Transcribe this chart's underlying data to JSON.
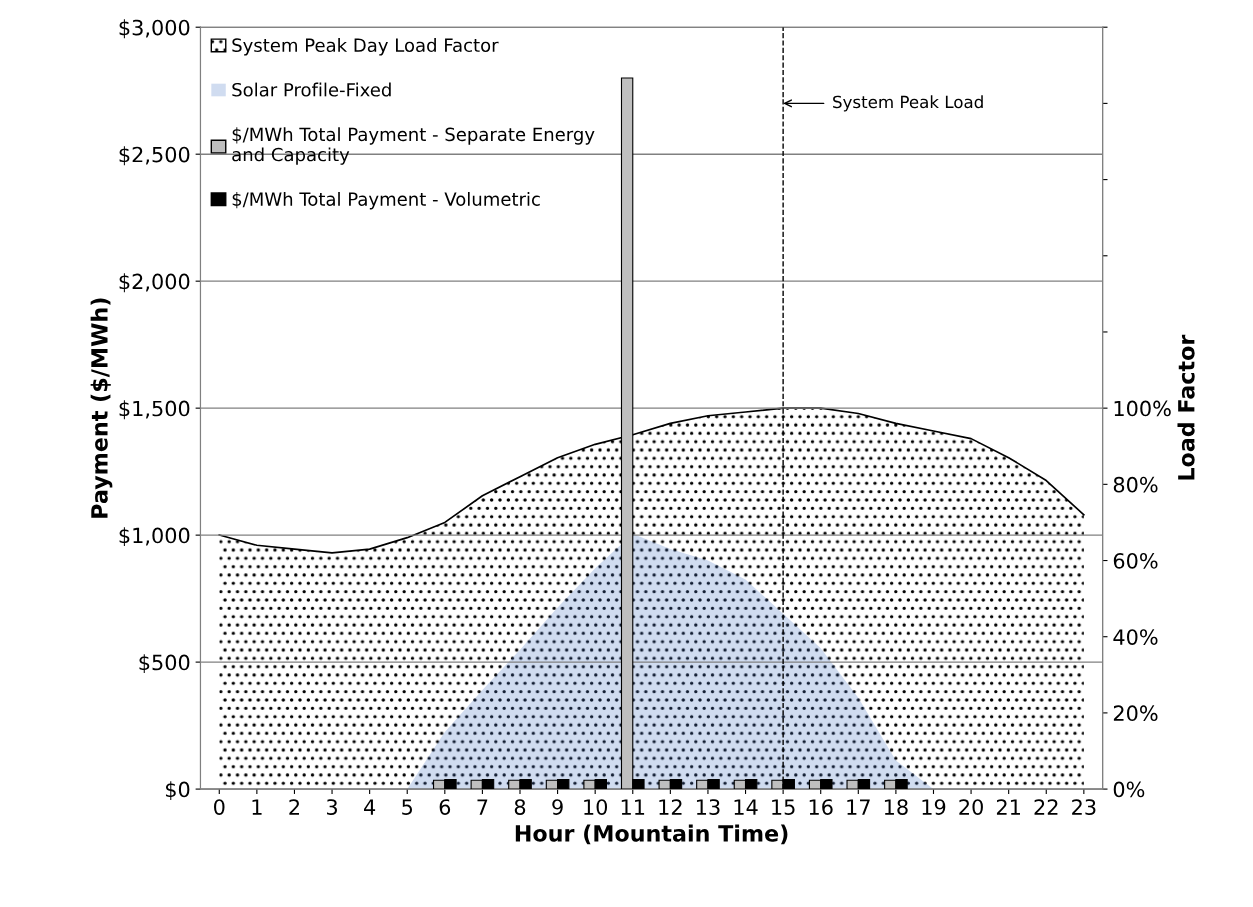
{
  "chart_data": {
    "type": "bar",
    "xlabel": "Hour (Mountain Time)",
    "ylabel": "Payment ($/MWh)",
    "y2label": "Load Factor",
    "categories": [
      "0",
      "1",
      "2",
      "3",
      "4",
      "5",
      "6",
      "7",
      "8",
      "9",
      "10",
      "11",
      "12",
      "13",
      "14",
      "15",
      "16",
      "17",
      "18",
      "19",
      "20",
      "21",
      "22",
      "23"
    ],
    "series": [
      {
        "name": "System Peak Day Load Factor",
        "type": "area",
        "axis": "y2",
        "color": "#000000",
        "values": [
          66.7,
          64,
          63,
          62,
          63,
          66,
          70,
          77,
          82,
          87,
          90.5,
          93,
          96,
          98,
          99,
          100,
          100,
          98.6,
          96,
          94,
          92,
          87,
          81,
          72
        ]
      },
      {
        "name": "Solar Profile-Fixed",
        "type": "area",
        "axis": "y2",
        "color": "#4472c4",
        "values": [
          0,
          0,
          0,
          0,
          0,
          0,
          15,
          26,
          36.6,
          47.7,
          58,
          67,
          63,
          60,
          55,
          46,
          37,
          24,
          7.5,
          0,
          0,
          0,
          0,
          0
        ]
      },
      {
        "name": "$/MWh Total Payment - Separate Energy and Capacity",
        "color": "#bfbfbf",
        "values": [
          null,
          null,
          null,
          null,
          null,
          null,
          35,
          35,
          35,
          35,
          35,
          2800,
          35,
          35,
          35,
          35,
          35,
          35,
          35,
          null,
          null,
          null,
          null,
          null
        ]
      },
      {
        "name": "$/MWh Total Payment - Volumetric",
        "color": "#000000",
        "values": [
          null,
          null,
          null,
          null,
          null,
          null,
          38,
          38,
          38,
          38,
          38,
          38,
          38,
          38,
          38,
          38,
          38,
          38,
          38,
          null,
          null,
          null,
          null,
          null
        ]
      }
    ],
    "ylim": [
      0,
      3000
    ],
    "yticks": [
      {
        "value": 0,
        "label": "$0"
      },
      {
        "value": 500,
        "label": "$500"
      },
      {
        "value": 1000,
        "label": "$1,000"
      },
      {
        "value": 1500,
        "label": "$1,500"
      },
      {
        "value": 2000,
        "label": "$2,000"
      },
      {
        "value": 2500,
        "label": "$2,500"
      },
      {
        "value": 3000,
        "label": "$3,000"
      }
    ],
    "y2lim": [
      0,
      200
    ],
    "y2ticks": [
      {
        "value": 0,
        "label": "0%"
      },
      {
        "value": 20,
        "label": "20%"
      },
      {
        "value": 40,
        "label": "40%"
      },
      {
        "value": 60,
        "label": "60%"
      },
      {
        "value": 80,
        "label": "80%"
      },
      {
        "value": 100,
        "label": "100%"
      },
      {
        "value": 120,
        "label": null
      },
      {
        "value": 140,
        "label": null
      },
      {
        "value": 160,
        "label": null
      },
      {
        "value": 180,
        "label": null
      },
      {
        "value": 200,
        "label": null
      }
    ],
    "ref_lines": [
      {
        "axis": "x",
        "value": "15",
        "label": "System Peak Load",
        "line_style": "dashed",
        "color": "#000000"
      }
    ],
    "grid": "y",
    "legend": "top left"
  }
}
